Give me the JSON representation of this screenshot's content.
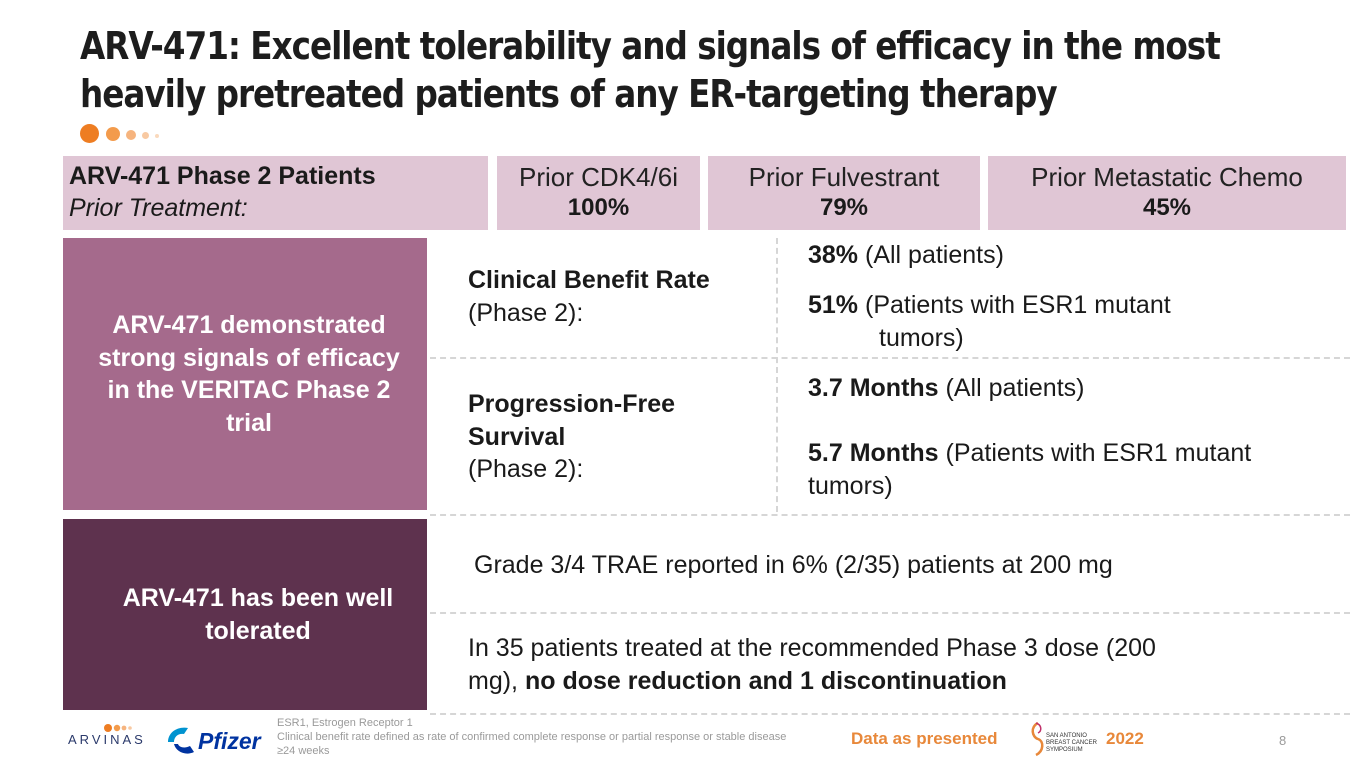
{
  "title": {
    "line1": "ARV-471: Excellent tolerability and signals of efficacy in the most",
    "line2": "heavily pretreated patients of any ER-targeting therapy"
  },
  "header": {
    "label_bold": "ARV-471 Phase 2 Patients",
    "label_italic": "Prior Treatment:",
    "stats": [
      {
        "label": "Prior CDK4/6i",
        "value": "100%"
      },
      {
        "label": "Prior Fulvestrant",
        "value": "79%"
      },
      {
        "label": "Prior Metastatic Chemo",
        "value": "45%"
      }
    ]
  },
  "efficacy": {
    "side_text": "ARV-471 demonstrated strong signals of efficacy in the VERITAC Phase 2 trial",
    "cbr": {
      "label_bold": "Clinical Benefit Rate",
      "label_normal": "(Phase 2):",
      "v1_bold": "38%",
      "v1_text": " (All patients)",
      "v2_bold": "51%",
      "v2_text": " (Patients with ESR1 mutant",
      "v2_text2": "tumors)"
    },
    "pfs": {
      "label_bold1": "Progression-Free",
      "label_bold2": "Survival",
      "label_normal": "(Phase 2):",
      "v1_bold": "3.7 Months",
      "v1_text": " (All patients)",
      "v2_bold": "5.7 Months",
      "v2_text": " (Patients with ESR1 mutant",
      "v2_text2": "tumors)"
    }
  },
  "tolerability": {
    "side_text": "ARV-471 has been well tolerated",
    "line1": "Grade 3/4 TRAE reported in 6% (2/35) patients at 200 mg",
    "line2_normal1": "In 35 patients treated at the recommended Phase 3 dose (200",
    "line2_normal2": "mg), ",
    "line2_bold": "no dose reduction and 1 discontinuation"
  },
  "footer": {
    "arvinas_logo": "ARVINAS",
    "pfizer_logo": "Pfizer",
    "footnote1": "ESR1, Estrogen Receptor 1",
    "footnote2": "Clinical benefit rate defined as rate of confirmed complete response or partial response or stable disease ≥24 weeks",
    "data_as_presented": "Data as presented",
    "sabcs_logo": "SAN ANTONIO BREAST CANCER SYMPOSIUM",
    "year": "2022",
    "page_number": "8"
  },
  "colors": {
    "header_bg": "#e0c6d5",
    "efficacy_bg": "#a56a8c",
    "tolerability_bg": "#5e324e",
    "accent_orange": "#e8883a"
  }
}
